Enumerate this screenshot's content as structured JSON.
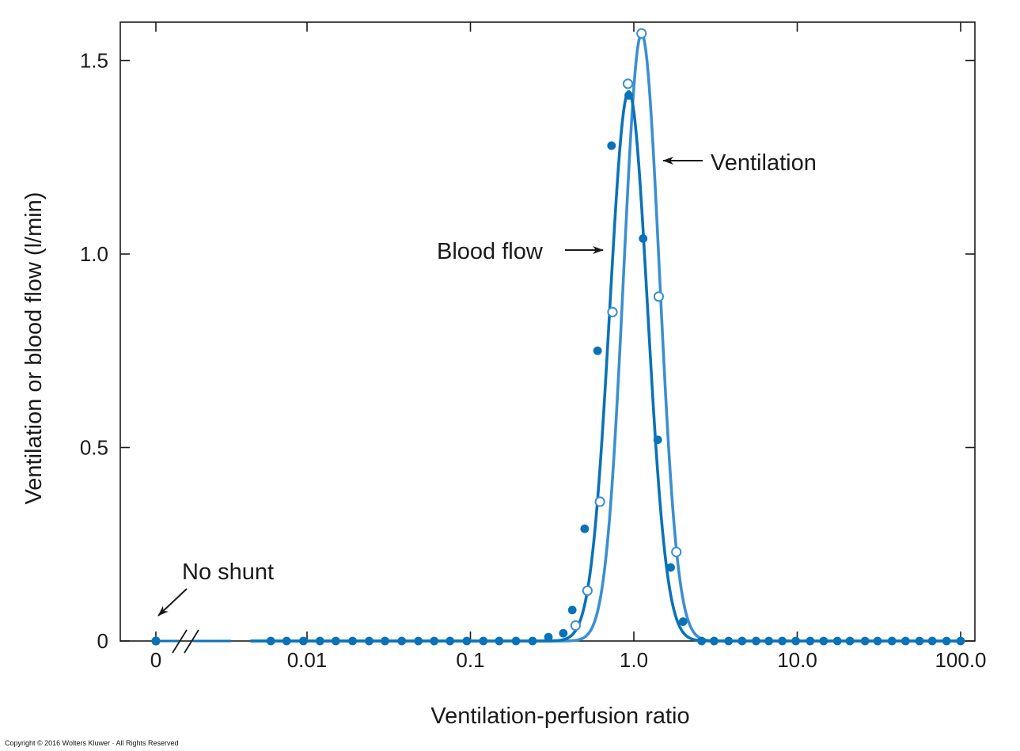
{
  "chart_data": {
    "type": "line",
    "xlabel": "Ventilation-perfusion ratio",
    "ylabel": "Ventilation or blood flow (l/min)",
    "x_scale": "log",
    "xlim": [
      0.0025,
      100
    ],
    "ylim": [
      0,
      1.6
    ],
    "x_ticks": [
      {
        "value": 0.01,
        "label": "0.01"
      },
      {
        "value": 0.1,
        "label": "0.1"
      },
      {
        "value": 1,
        "label": "1.0"
      },
      {
        "value": 10,
        "label": "10.0"
      },
      {
        "value": 100,
        "label": "100.0"
      }
    ],
    "zero_tick": {
      "label": "0"
    },
    "y_ticks": [
      {
        "value": 0,
        "label": "0"
      },
      {
        "value": 0.5,
        "label": "0.5"
      },
      {
        "value": 1.0,
        "label": "1.0"
      },
      {
        "value": 1.5,
        "label": "1.5"
      }
    ],
    "axis_break": true,
    "grid": false,
    "series": [
      {
        "key": "blood",
        "color": "#0a72b8",
        "marker": "filled-circle",
        "curve": {
          "amplitude": 1.42,
          "center": 0.93,
          "sigma_log10": 0.1155
        },
        "points": [
          [
            0.006,
            0
          ],
          [
            0.0075,
            0
          ],
          [
            0.0095,
            0
          ],
          [
            0.012,
            0
          ],
          [
            0.015,
            0
          ],
          [
            0.019,
            0
          ],
          [
            0.024,
            0
          ],
          [
            0.03,
            0
          ],
          [
            0.038,
            0
          ],
          [
            0.048,
            0
          ],
          [
            0.06,
            0
          ],
          [
            0.075,
            0
          ],
          [
            0.095,
            0
          ],
          [
            0.12,
            0
          ],
          [
            0.15,
            0
          ],
          [
            0.19,
            0
          ],
          [
            0.24,
            0
          ],
          [
            0.3,
            0.01
          ],
          [
            0.37,
            0.02
          ],
          [
            0.42,
            0.08
          ],
          [
            0.5,
            0.29
          ],
          [
            0.6,
            0.75
          ],
          [
            0.73,
            1.28
          ],
          [
            0.93,
            1.41
          ],
          [
            1.14,
            1.04
          ],
          [
            1.4,
            0.52
          ],
          [
            1.68,
            0.19
          ],
          [
            2.0,
            0.05
          ],
          [
            2.6,
            0
          ],
          [
            3.1,
            0
          ],
          [
            3.8,
            0
          ],
          [
            4.6,
            0
          ],
          [
            5.6,
            0
          ],
          [
            6.7,
            0
          ],
          [
            8.1,
            0
          ],
          [
            9.8,
            0
          ],
          [
            12,
            0
          ],
          [
            14.5,
            0
          ],
          [
            17.6,
            0
          ],
          [
            21,
            0
          ],
          [
            26,
            0
          ],
          [
            31,
            0
          ],
          [
            38,
            0
          ],
          [
            46,
            0
          ],
          [
            56,
            0
          ],
          [
            67,
            0
          ],
          [
            82,
            0
          ],
          [
            100,
            0
          ]
        ]
      },
      {
        "key": "ventilation",
        "color": "#3b8fd1",
        "marker": "open-circle",
        "curve": {
          "amplitude": 1.57,
          "center": 1.115,
          "sigma_log10": 0.1095
        },
        "points": [
          [
            0.44,
            0.04
          ],
          [
            0.52,
            0.13
          ],
          [
            0.62,
            0.36
          ],
          [
            0.74,
            0.85
          ],
          [
            0.92,
            1.44
          ],
          [
            1.115,
            1.57
          ],
          [
            1.42,
            0.89
          ],
          [
            1.82,
            0.23
          ]
        ]
      }
    ],
    "shunt_point": {
      "x_label": "0",
      "y": 0
    },
    "annotations": [
      {
        "text": "No shunt",
        "target": "shunt"
      },
      {
        "text": "Blood flow",
        "target": "blood"
      },
      {
        "text": "Ventilation",
        "target": "ventilation"
      }
    ]
  },
  "copyright": "Copyright © 2016 Wolters Kluwer · All Rights Reserved"
}
